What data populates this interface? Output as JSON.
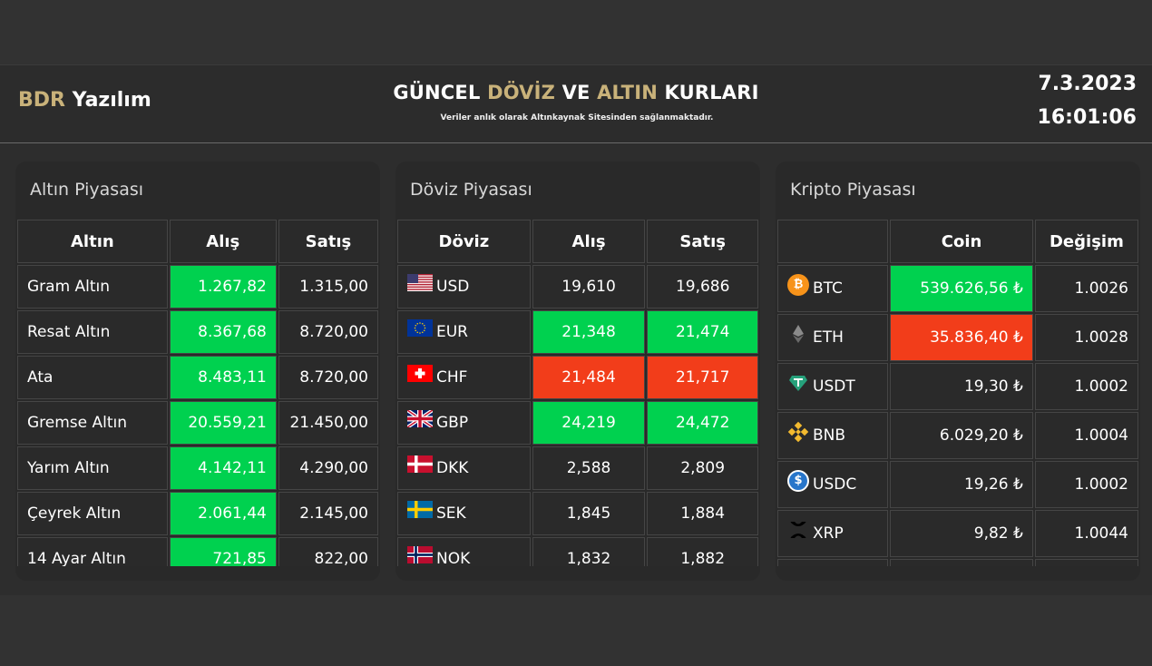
{
  "header": {
    "brand_1": "BDR",
    "brand_2": "Yazılım",
    "title_1": "GÜNCEL",
    "title_2": "DÖVİZ",
    "title_3": "VE",
    "title_4": "ALTIN",
    "title_5": "KURLARI",
    "subtitle": "Veriler anlık olarak Altınkaynak Sitesinden sağlanmaktadır.",
    "date": "7.3.2023",
    "time": "16:01:06"
  },
  "gold": {
    "title": "Altın Piyasası",
    "headers": [
      "Altın",
      "Alış",
      "Satış"
    ],
    "rows": [
      {
        "name": "Gram Altın",
        "buy": "1.267,82",
        "sell": "1.315,00",
        "buy_trend": "up",
        "sell_trend": "none"
      },
      {
        "name": "Resat Altın",
        "buy": "8.367,68",
        "sell": "8.720,00",
        "buy_trend": "up",
        "sell_trend": "none"
      },
      {
        "name": "Ata",
        "buy": "8.483,11",
        "sell": "8.720,00",
        "buy_trend": "up",
        "sell_trend": "none"
      },
      {
        "name": "Gremse Altın",
        "buy": "20.559,21",
        "sell": "21.450,00",
        "buy_trend": "up",
        "sell_trend": "none"
      },
      {
        "name": "Yarım Altın",
        "buy": "4.142,11",
        "sell": "4.290,00",
        "buy_trend": "up",
        "sell_trend": "none"
      },
      {
        "name": "Çeyrek Altın",
        "buy": "2.061,44",
        "sell": "2.145,00",
        "buy_trend": "up",
        "sell_trend": "none"
      },
      {
        "name": "14 Ayar Altın",
        "buy": "721,85",
        "sell": "822,00",
        "buy_trend": "up",
        "sell_trend": "none"
      }
    ]
  },
  "currency": {
    "title": "Döviz Piyasası",
    "headers": [
      "Döviz",
      "Alış",
      "Satış"
    ],
    "rows": [
      {
        "code": "USD",
        "flag": "us-flag",
        "buy": "19,610",
        "sell": "19,686",
        "buy_trend": "none",
        "sell_trend": "none"
      },
      {
        "code": "EUR",
        "flag": "eu-flag",
        "buy": "21,348",
        "sell": "21,474",
        "buy_trend": "up",
        "sell_trend": "up"
      },
      {
        "code": "CHF",
        "flag": "ch-flag",
        "buy": "21,484",
        "sell": "21,717",
        "buy_trend": "down",
        "sell_trend": "down"
      },
      {
        "code": "GBP",
        "flag": "gb-flag",
        "buy": "24,219",
        "sell": "24,472",
        "buy_trend": "up",
        "sell_trend": "up"
      },
      {
        "code": "DKK",
        "flag": "dk-flag",
        "buy": "2,588",
        "sell": "2,809",
        "buy_trend": "none",
        "sell_trend": "none"
      },
      {
        "code": "SEK",
        "flag": "se-flag",
        "buy": "1,845",
        "sell": "1,884",
        "buy_trend": "none",
        "sell_trend": "none"
      },
      {
        "code": "NOK",
        "flag": "no-flag",
        "buy": "1,832",
        "sell": "1,882",
        "buy_trend": "none",
        "sell_trend": "none"
      }
    ]
  },
  "crypto": {
    "title": "Kripto Piyasası",
    "headers": [
      "",
      "Coin",
      "Değişim"
    ],
    "rows": [
      {
        "code": "BTC",
        "icon": "btc-icon",
        "price": "539.626,56 ₺",
        "change": "1.0026",
        "trend": "up"
      },
      {
        "code": "ETH",
        "icon": "eth-icon",
        "price": "35.836,40 ₺",
        "change": "1.0028",
        "trend": "down"
      },
      {
        "code": "USDT",
        "icon": "usdt-icon",
        "price": "19,30 ₺",
        "change": "1.0002",
        "trend": "none"
      },
      {
        "code": "BNB",
        "icon": "bnb-icon",
        "price": "6.029,20 ₺",
        "change": "1.0004",
        "trend": "none"
      },
      {
        "code": "USDC",
        "icon": "usdc-icon",
        "price": "19,26 ₺",
        "change": "1.0002",
        "trend": "none"
      },
      {
        "code": "XRP",
        "icon": "xrp-icon",
        "price": "9,82 ₺",
        "change": "1.0044",
        "trend": "none"
      },
      {
        "code": "",
        "icon": "",
        "price": "",
        "change": "",
        "trend": "none"
      }
    ]
  },
  "colors": {
    "gold_accent": "#c9b27a",
    "up": "#00d14f",
    "down": "#f23d1a"
  }
}
